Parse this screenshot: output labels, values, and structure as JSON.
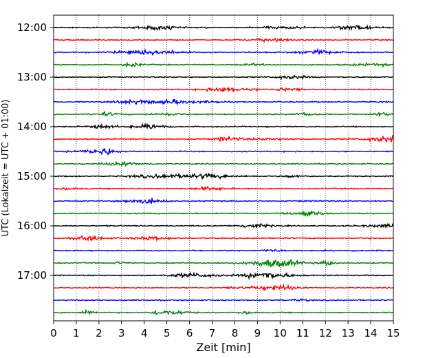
{
  "chart_data": {
    "type": "line",
    "title": "",
    "xlabel": "Zeit  [min]",
    "ylabel": "UTC (Lokalzeit = UTC + 01:00)",
    "xlim": [
      0,
      15
    ],
    "x_ticks": [
      "0",
      "1",
      "2",
      "3",
      "4",
      "5",
      "6",
      "7",
      "8",
      "9",
      "10",
      "11",
      "12",
      "13",
      "14",
      "15"
    ],
    "y_ticks": [
      "12:00",
      "13:00",
      "14:00",
      "15:00",
      "16:00",
      "17:00"
    ],
    "grid": "vertical dotted lines at each minute",
    "trace_colors": [
      "#000000",
      "#ff0000",
      "#0000ff",
      "#008000"
    ],
    "trace_start_times": [
      "12:00",
      "12:15",
      "12:30",
      "12:45",
      "13:00",
      "13:15",
      "13:30",
      "13:45",
      "14:00",
      "14:15",
      "14:30",
      "14:45",
      "15:00",
      "15:15",
      "15:30",
      "15:45",
      "16:00",
      "16:15",
      "16:30",
      "16:45",
      "17:00",
      "17:15",
      "17:30",
      "17:45"
    ],
    "trace_minutes_per_line": 15
  }
}
